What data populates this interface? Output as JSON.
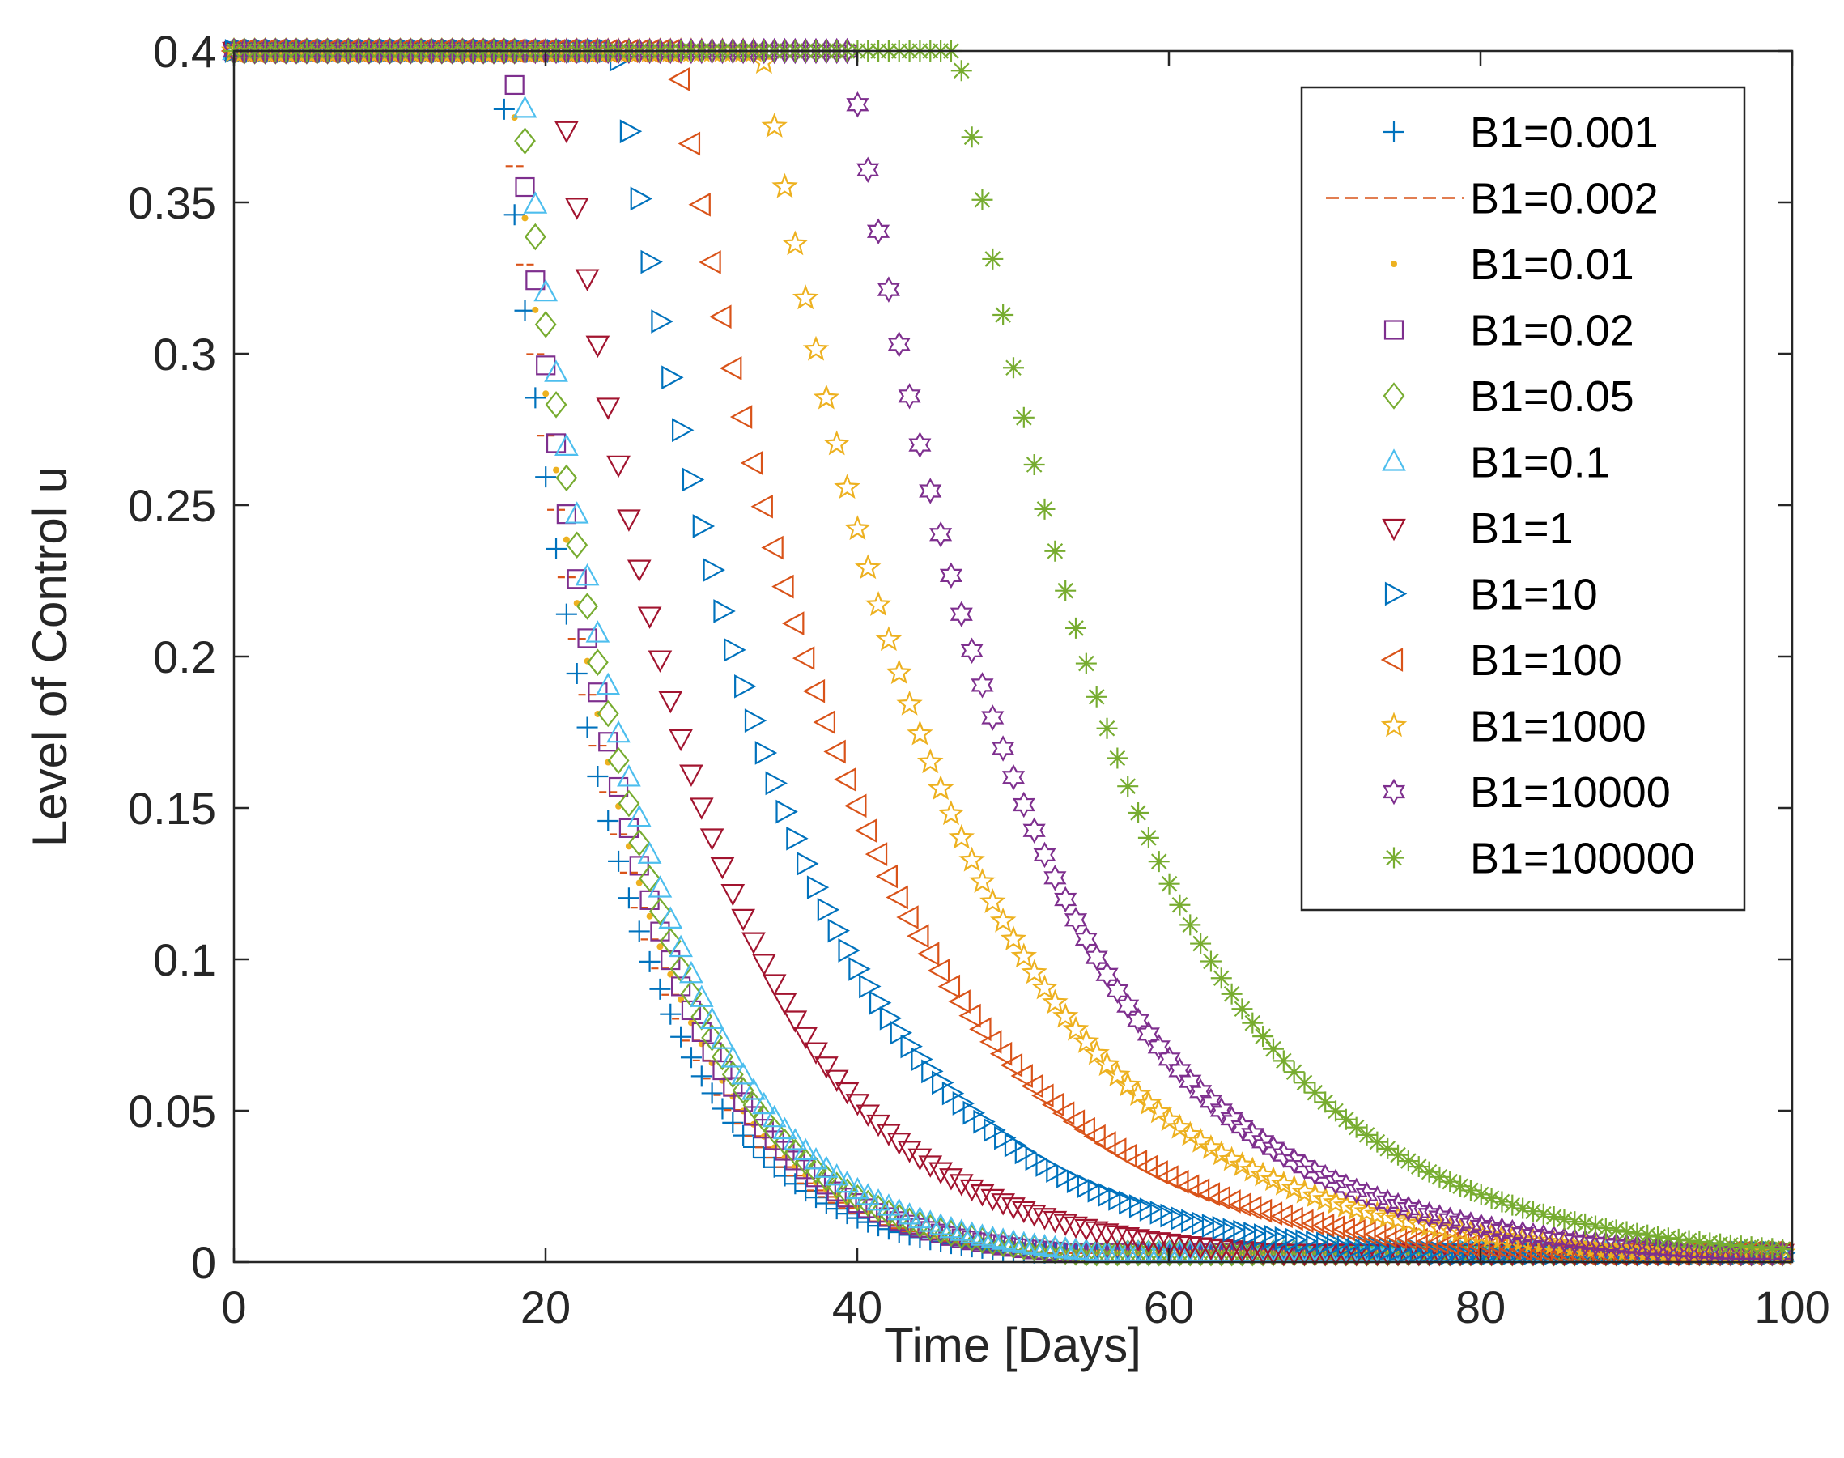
{
  "chart_data": {
    "type": "scatter",
    "title": "",
    "xlabel": "Time [Days]",
    "ylabel": "Level of Control u",
    "xlim": [
      0,
      100
    ],
    "ylim": [
      0,
      0.4
    ],
    "x_ticks": [
      "0",
      "20",
      "40",
      "60",
      "80",
      "100"
    ],
    "y_ticks": [
      "0",
      "0.05",
      "0.1",
      "0.15",
      "0.2",
      "0.25",
      "0.3",
      "0.35",
      "0.4"
    ],
    "grid": false,
    "legend_position": "top-right",
    "u_max": 0.4,
    "x_step_days": 0.667,
    "series": [
      {
        "name": "B1=0.001",
        "marker": "plus",
        "color": "#0072BD",
        "switch_day": 17,
        "decay_per_day": 0.144
      },
      {
        "name": "B1=0.002",
        "marker": "dash",
        "color": "#D95319",
        "switch_day": 17.3,
        "decay_per_day": 0.141
      },
      {
        "name": "B1=0.01",
        "marker": "point",
        "color": "#EDB120",
        "switch_day": 17.6,
        "decay_per_day": 0.138
      },
      {
        "name": "B1=0.02",
        "marker": "square",
        "color": "#7E2F8E",
        "switch_day": 17.8,
        "decay_per_day": 0.136
      },
      {
        "name": "B1=0.05",
        "marker": "diamond",
        "color": "#77AC30",
        "switch_day": 18.1,
        "decay_per_day": 0.134
      },
      {
        "name": "B1=0.1",
        "marker": "triangle-up",
        "color": "#4DBEEE",
        "switch_day": 18.3,
        "decay_per_day": 0.13
      },
      {
        "name": "B1=1",
        "marker": "triangle-down",
        "color": "#A2142F",
        "switch_day": 20.7,
        "decay_per_day": 0.105
      },
      {
        "name": "B1=10",
        "marker": "triangle-right",
        "color": "#0072BD",
        "switch_day": 24.6,
        "decay_per_day": 0.092
      },
      {
        "name": "B1=100",
        "marker": "triangle-left",
        "color": "#D95319",
        "switch_day": 28.4,
        "decay_per_day": 0.084
      },
      {
        "name": "B1=1000",
        "marker": "pentagram",
        "color": "#EDB120",
        "switch_day": 33.9,
        "decay_per_day": 0.082
      },
      {
        "name": "B1=10000",
        "marker": "hexagram",
        "color": "#7E2F8E",
        "switch_day": 39.5,
        "decay_per_day": 0.087
      },
      {
        "name": "B1=100000",
        "marker": "asterisk",
        "color": "#77AC30",
        "switch_day": 46.5,
        "decay_per_day": 0.086
      }
    ]
  }
}
